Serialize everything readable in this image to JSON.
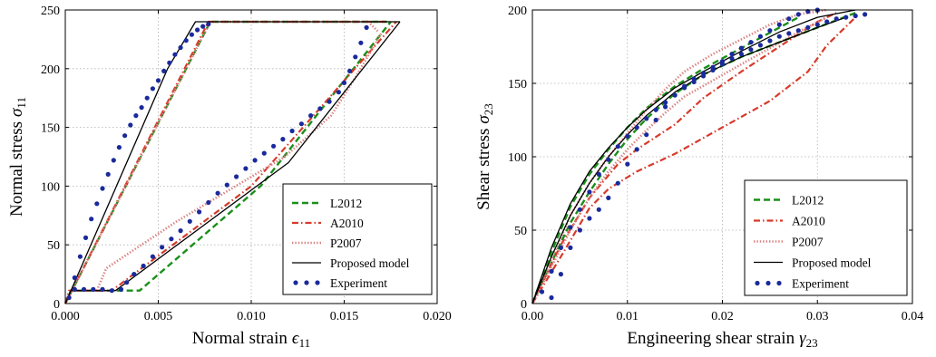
{
  "colors": {
    "L2012": "#1a8f1a",
    "A2010": "#d63a2a",
    "P2007": "#d98080",
    "Proposed model": "#000000",
    "Experiment": "#1a2a9c"
  },
  "chart_data": [
    {
      "type": "line",
      "title": "",
      "xlabel": "Normal strain",
      "xlabel_symbol": "ϵ",
      "xlabel_sub": "11",
      "ylabel": "Normal stress",
      "ylabel_symbol": "σ",
      "ylabel_sub": "11",
      "xlim": [
        0,
        0.02
      ],
      "ylim": [
        0,
        250
      ],
      "xticks": [
        "0.000",
        "0.005",
        "0.010",
        "0.015",
        "0.020"
      ],
      "yticks": [
        "0",
        "50",
        "100",
        "150",
        "200",
        "250"
      ],
      "grid": true,
      "legend_position": "bottom-right",
      "legend": [
        "L2012",
        "A2010",
        "P2007",
        "Proposed model",
        "Experiment"
      ],
      "series": [
        {
          "name": "L2012",
          "style": "dashed",
          "x": [
            0.0,
            0.0003,
            0.004,
            0.0105,
            0.0135,
            0.0165,
            0.0175
          ],
          "y": [
            0,
            11,
            11,
            100,
            160,
            220,
            240
          ]
        },
        {
          "name": "L2012",
          "style": "dashed",
          "x": [
            0.0,
            0.0078,
            0.0173
          ],
          "y": [
            0,
            240,
            240
          ]
        },
        {
          "name": "A2010",
          "style": "dashdot",
          "x": [
            0.0,
            0.0002,
            0.0025,
            0.01,
            0.0178
          ],
          "y": [
            0,
            11,
            11,
            100,
            240
          ]
        },
        {
          "name": "A2010",
          "style": "dashdot",
          "x": [
            0.0,
            0.0077,
            0.0173
          ],
          "y": [
            0,
            240,
            240
          ]
        },
        {
          "name": "P2007",
          "style": "dotted",
          "x": [
            0.0,
            0.0003,
            0.0017,
            0.0022,
            0.006,
            0.0118,
            0.0143,
            0.0155,
            0.017
          ],
          "y": [
            0,
            11,
            11,
            30,
            70,
            125,
            160,
            190,
            230
          ]
        },
        {
          "name": "P2007",
          "style": "dotted",
          "x": [
            0.0,
            0.0078,
            0.0163,
            0.0168
          ],
          "y": [
            0,
            240,
            240,
            232
          ]
        },
        {
          "name": "Proposed model",
          "style": "solid",
          "x": [
            0.0,
            0.0003,
            0.0027,
            0.012,
            0.018
          ],
          "y": [
            0,
            11,
            11,
            120,
            240
          ]
        },
        {
          "name": "Proposed model",
          "style": "solid",
          "x": [
            0.0,
            0.0055,
            0.007,
            0.018
          ],
          "y": [
            0,
            200,
            240,
            240
          ]
        },
        {
          "name": "Experiment",
          "style": "markers",
          "x": [
            0.0002,
            0.0005,
            0.0008,
            0.0011,
            0.0014,
            0.0017,
            0.002,
            0.0023,
            0.0026,
            0.0029,
            0.0032,
            0.0035,
            0.0038,
            0.0041,
            0.0044,
            0.0047,
            0.005,
            0.0053,
            0.0056,
            0.0059,
            0.0062,
            0.0065,
            0.0068,
            0.0071,
            0.0074,
            0.0077,
            0.0005,
            0.001,
            0.0015,
            0.002,
            0.0025,
            0.003,
            0.0033,
            0.0037,
            0.0042,
            0.0047,
            0.0052,
            0.0057,
            0.0062,
            0.0067,
            0.0072,
            0.0077,
            0.0082,
            0.0087,
            0.0092,
            0.0097,
            0.0102,
            0.0107,
            0.0112,
            0.0117,
            0.0122,
            0.0127,
            0.0132,
            0.0137,
            0.0142,
            0.0147,
            0.015,
            0.0153,
            0.0156,
            0.0159,
            0.0162
          ],
          "y": [
            5,
            22,
            40,
            56,
            72,
            85,
            98,
            110,
            122,
            133,
            143,
            152,
            160,
            167,
            175,
            183,
            190,
            198,
            205,
            212,
            218,
            224,
            229,
            233,
            236,
            238,
            12,
            12,
            12,
            12,
            11,
            12,
            18,
            25,
            32,
            40,
            48,
            55,
            62,
            70,
            78,
            86,
            94,
            101,
            108,
            115,
            122,
            128,
            134,
            140,
            147,
            153,
            160,
            166,
            172,
            180,
            188,
            198,
            210,
            222,
            235
          ]
        }
      ]
    },
    {
      "type": "line",
      "title": "",
      "xlabel": "Engineering shear strain",
      "xlabel_symbol": "γ",
      "xlabel_sub": "23",
      "ylabel": "Shear stress",
      "ylabel_symbol": "σ",
      "ylabel_sub": "23",
      "xlim": [
        0,
        0.04
      ],
      "ylim": [
        0,
        200
      ],
      "xticks": [
        "0.00",
        "0.01",
        "0.02",
        "0.03",
        "0.04"
      ],
      "yticks": [
        "0",
        "50",
        "100",
        "150",
        "200"
      ],
      "grid": true,
      "legend_position": "bottom-right",
      "legend": [
        "L2012",
        "A2010",
        "P2007",
        "Proposed model",
        "Experiment"
      ],
      "series": [
        {
          "name": "L2012",
          "style": "dashed",
          "x": [
            0.0,
            0.002,
            0.004,
            0.006,
            0.008,
            0.01,
            0.012,
            0.015,
            0.018,
            0.022,
            0.026,
            0.03,
            0.034
          ],
          "y": [
            0,
            28,
            55,
            76,
            95,
            112,
            126,
            143,
            156,
            168,
            178,
            188,
            198
          ]
        },
        {
          "name": "L2012",
          "style": "dashed",
          "x": [
            0.0,
            0.002,
            0.004,
            0.006,
            0.008,
            0.01,
            0.012,
            0.015,
            0.018,
            0.022,
            0.026,
            0.028
          ],
          "y": [
            0,
            35,
            66,
            88,
            105,
            120,
            133,
            148,
            160,
            174,
            188,
            195
          ]
        },
        {
          "name": "A2010",
          "style": "dashdot",
          "x": [
            0.0,
            0.003,
            0.006,
            0.008,
            0.011,
            0.015,
            0.02,
            0.025,
            0.029,
            0.031,
            0.034
          ],
          "y": [
            0,
            32,
            65,
            78,
            90,
            102,
            120,
            138,
            158,
            176,
            195
          ]
        },
        {
          "name": "A2010",
          "style": "dashdot",
          "x": [
            0.0,
            0.003,
            0.006,
            0.009,
            0.011,
            0.015,
            0.018,
            0.022,
            0.026,
            0.03,
            0.032
          ],
          "y": [
            0,
            40,
            72,
            95,
            105,
            122,
            140,
            158,
            175,
            192,
            198
          ]
        },
        {
          "name": "P2007",
          "style": "dotted",
          "x": [
            0.0,
            0.002,
            0.004,
            0.006,
            0.008,
            0.01,
            0.012,
            0.014,
            0.016,
            0.019,
            0.022,
            0.025,
            0.028,
            0.031
          ],
          "y": [
            0,
            30,
            60,
            82,
            100,
            116,
            132,
            146,
            158,
            170,
            180,
            190,
            197,
            200
          ]
        },
        {
          "name": "P2007",
          "style": "dotted",
          "x": [
            0.0,
            0.002,
            0.004,
            0.006,
            0.008,
            0.01,
            0.012,
            0.014,
            0.016,
            0.019,
            0.022,
            0.025,
            0.028,
            0.031
          ],
          "y": [
            0,
            25,
            50,
            72,
            90,
            105,
            118,
            130,
            141,
            152,
            163,
            174,
            185,
            195
          ]
        },
        {
          "name": "Proposed model",
          "style": "solid",
          "x": [
            0.0,
            0.002,
            0.004,
            0.006,
            0.008,
            0.01,
            0.012,
            0.015,
            0.018,
            0.022,
            0.026,
            0.03,
            0.033
          ],
          "y": [
            0,
            32,
            60,
            82,
            100,
            115,
            128,
            144,
            156,
            168,
            178,
            188,
            195
          ]
        },
        {
          "name": "Proposed model",
          "style": "solid",
          "x": [
            0.0,
            0.002,
            0.004,
            0.006,
            0.008,
            0.01,
            0.012,
            0.015,
            0.018,
            0.022,
            0.026,
            0.03,
            0.034
          ],
          "y": [
            0,
            38,
            68,
            90,
            106,
            120,
            132,
            147,
            158,
            172,
            185,
            195,
            200
          ]
        },
        {
          "name": "Experiment",
          "style": "markers",
          "x": [
            0.001,
            0.002,
            0.003,
            0.004,
            0.005,
            0.006,
            0.007,
            0.008,
            0.009,
            0.01,
            0.011,
            0.012,
            0.013,
            0.014,
            0.015,
            0.016,
            0.017,
            0.018,
            0.019,
            0.02,
            0.021,
            0.022,
            0.023,
            0.024,
            0.025,
            0.026,
            0.027,
            0.028,
            0.029,
            0.03,
            0.031,
            0.032,
            0.033,
            0.034,
            0.035,
            0.002,
            0.003,
            0.004,
            0.005,
            0.006,
            0.007,
            0.008,
            0.009,
            0.01,
            0.011,
            0.012,
            0.013,
            0.014,
            0.015,
            0.016,
            0.017,
            0.018,
            0.019,
            0.02,
            0.021,
            0.022,
            0.023,
            0.024,
            0.025,
            0.026,
            0.027,
            0.028,
            0.029,
            0.03
          ],
          "y": [
            8,
            22,
            38,
            52,
            64,
            76,
            88,
            98,
            107,
            114,
            120,
            126,
            132,
            137,
            142,
            147,
            151,
            155,
            159,
            163,
            167,
            170,
            173,
            176,
            179,
            182,
            184,
            186,
            188,
            190,
            192,
            194,
            195,
            196,
            197,
            4,
            20,
            38,
            50,
            58,
            64,
            72,
            82,
            95,
            105,
            115,
            125,
            134,
            142,
            148,
            153,
            157,
            161,
            165,
            170,
            174,
            178,
            182,
            186,
            190,
            194,
            197,
            199,
            200
          ]
        }
      ]
    }
  ]
}
